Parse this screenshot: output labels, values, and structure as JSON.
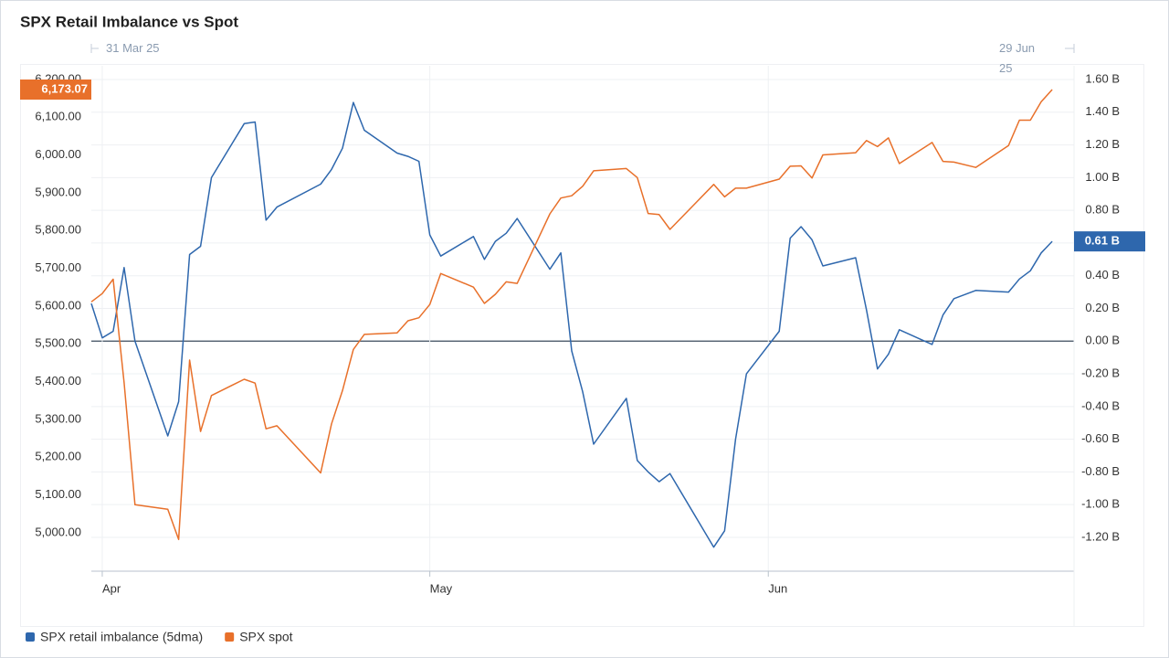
{
  "chart_data": {
    "type": "line",
    "title": "SPX Retail Imbalance vs Spot",
    "range_labels": [
      "31 Mar 25",
      "29 Jun 25"
    ],
    "x": [
      "2025-03-31",
      "2025-04-01",
      "2025-04-02",
      "2025-04-03",
      "2025-04-04",
      "2025-04-07",
      "2025-04-08",
      "2025-04-09",
      "2025-04-10",
      "2025-04-11",
      "2025-04-14",
      "2025-04-15",
      "2025-04-16",
      "2025-04-17",
      "2025-04-21",
      "2025-04-22",
      "2025-04-23",
      "2025-04-24",
      "2025-04-25",
      "2025-04-28",
      "2025-04-29",
      "2025-04-30",
      "2025-05-01",
      "2025-05-02",
      "2025-05-05",
      "2025-05-06",
      "2025-05-07",
      "2025-05-08",
      "2025-05-09",
      "2025-05-12",
      "2025-05-13",
      "2025-05-14",
      "2025-05-15",
      "2025-05-16",
      "2025-05-19",
      "2025-05-20",
      "2025-05-21",
      "2025-05-22",
      "2025-05-23",
      "2025-05-27",
      "2025-05-28",
      "2025-05-29",
      "2025-05-30",
      "2025-06-02",
      "2025-06-03",
      "2025-06-04",
      "2025-06-05",
      "2025-06-06",
      "2025-06-09",
      "2025-06-10",
      "2025-06-11",
      "2025-06-12",
      "2025-06-13",
      "2025-06-16",
      "2025-06-17",
      "2025-06-18",
      "2025-06-20",
      "2025-06-23",
      "2025-06-24",
      "2025-06-25",
      "2025-06-26",
      "2025-06-27"
    ],
    "xlim": [
      "2025-03-31",
      "2025-06-29"
    ],
    "xticks": [
      {
        "value": "2025-04-01",
        "label": "Apr"
      },
      {
        "value": "2025-05-01",
        "label": "May"
      },
      {
        "value": "2025-06-01",
        "label": "Jun"
      }
    ],
    "series": [
      {
        "name": "SPX retail imbalance (5dma)",
        "color": "#2e67ad",
        "axis": "y2",
        "values": [
          0.23,
          0.02,
          0.06,
          0.45,
          0,
          -0.58,
          -0.37,
          0.53,
          0.58,
          1.0,
          1.33,
          1.34,
          0.74,
          0.82,
          0.96,
          1.05,
          1.18,
          1.46,
          1.29,
          1.15,
          1.13,
          1.1,
          0.65,
          0.52,
          0.64,
          0.5,
          0.61,
          0.66,
          0.75,
          0.44,
          0.54,
          -0.06,
          -0.31,
          -0.63,
          -0.35,
          -0.73,
          -0.8,
          -0.86,
          -0.81,
          -1.26,
          -1.16,
          -0.6,
          -0.2,
          0.06,
          0.63,
          0.7,
          0.62,
          0.46,
          0.51,
          0.19,
          -0.17,
          -0.08,
          0.07,
          -0.02,
          0.16,
          0.26,
          0.31,
          0.3,
          0.38,
          0.43,
          0.54,
          0.61
        ],
        "value_labels": [
          null,
          null,
          null,
          null,
          null,
          null,
          null,
          null,
          null,
          null,
          null,
          null,
          null,
          null,
          null,
          null,
          null,
          null,
          null,
          null,
          null,
          null,
          null,
          null,
          null,
          null,
          null,
          null,
          null,
          null,
          null,
          null,
          null,
          null,
          null,
          null,
          null,
          null,
          null,
          null,
          null,
          null,
          null,
          null,
          null,
          null,
          null,
          null,
          null,
          null,
          null,
          null,
          null,
          null,
          null,
          null,
          null,
          null,
          null,
          null,
          null,
          "0.61 B"
        ]
      },
      {
        "name": "SPX spot",
        "color": "#e8702a",
        "axis": "y",
        "values": [
          5611,
          5633,
          5671,
          5397,
          5074,
          5062,
          4982,
          5457,
          5268,
          5363,
          5406,
          5396,
          5275,
          5283,
          5158,
          5288,
          5376,
          5485,
          5525,
          5529,
          5561,
          5569,
          5604,
          5686,
          5650,
          5607,
          5631,
          5664,
          5660,
          5844,
          5886,
          5892,
          5917,
          5958,
          5964,
          5940,
          5845,
          5842,
          5803,
          5922,
          5889,
          5912,
          5912,
          5936,
          5970,
          5971,
          5939,
          6000,
          6006,
          6038,
          6022,
          6045,
          5977,
          6033,
          5983,
          5981,
          5967,
          6025,
          6092,
          6092,
          6141,
          6173.07
        ],
        "value_labels": [
          null,
          null,
          null,
          null,
          null,
          null,
          null,
          null,
          null,
          null,
          null,
          null,
          null,
          null,
          null,
          null,
          null,
          null,
          null,
          null,
          null,
          null,
          null,
          null,
          null,
          null,
          null,
          null,
          null,
          null,
          null,
          null,
          null,
          null,
          null,
          null,
          null,
          null,
          null,
          null,
          null,
          null,
          null,
          null,
          null,
          null,
          null,
          null,
          null,
          null,
          null,
          null,
          null,
          null,
          null,
          null,
          null,
          null,
          null,
          null,
          null,
          "6,173.07"
        ]
      }
    ],
    "ylim": [
      4898,
      6236
    ],
    "yticks": [
      {
        "value": 5000,
        "label": "5,000.00"
      },
      {
        "value": 5100,
        "label": "5,100.00"
      },
      {
        "value": 5200,
        "label": "5,200.00"
      },
      {
        "value": 5300,
        "label": "5,300.00"
      },
      {
        "value": 5400,
        "label": "5,400.00"
      },
      {
        "value": 5500,
        "label": "5,500.00"
      },
      {
        "value": 5600,
        "label": "5,600.00"
      },
      {
        "value": 5700,
        "label": "5,700.00"
      },
      {
        "value": 5800,
        "label": "5,800.00"
      },
      {
        "value": 5900,
        "label": "5,900.00"
      },
      {
        "value": 6000,
        "label": "6,000.00"
      },
      {
        "value": 6100,
        "label": "6,100.00"
      },
      {
        "value": 6200,
        "label": "6,200.00"
      }
    ],
    "y2lim": [
      -1.407,
      1.684
    ],
    "y2ticks": [
      {
        "value": -1.2,
        "label": "-1.20 B"
      },
      {
        "value": -1.0,
        "label": "-1.00 B"
      },
      {
        "value": -0.8,
        "label": "-0.80 B"
      },
      {
        "value": -0.6,
        "label": "-0.60 B"
      },
      {
        "value": -0.4,
        "label": "-0.40 B"
      },
      {
        "value": -0.2,
        "label": "-0.20 B"
      },
      {
        "value": 0,
        "label": "0.00 B"
      },
      {
        "value": 0.2,
        "label": "0.20 B"
      },
      {
        "value": 0.4,
        "label": "0.40 B"
      },
      {
        "value": 0.6,
        "label": "0.60 B"
      },
      {
        "value": 0.8,
        "label": "0.80 B"
      },
      {
        "value": 1.0,
        "label": "1.00 B"
      },
      {
        "value": 1.2,
        "label": "1.20 B"
      },
      {
        "value": 1.4,
        "label": "1.40 B"
      },
      {
        "value": 1.6,
        "label": "1.60 B"
      }
    ],
    "grid": true,
    "legend": "bottom-left"
  }
}
